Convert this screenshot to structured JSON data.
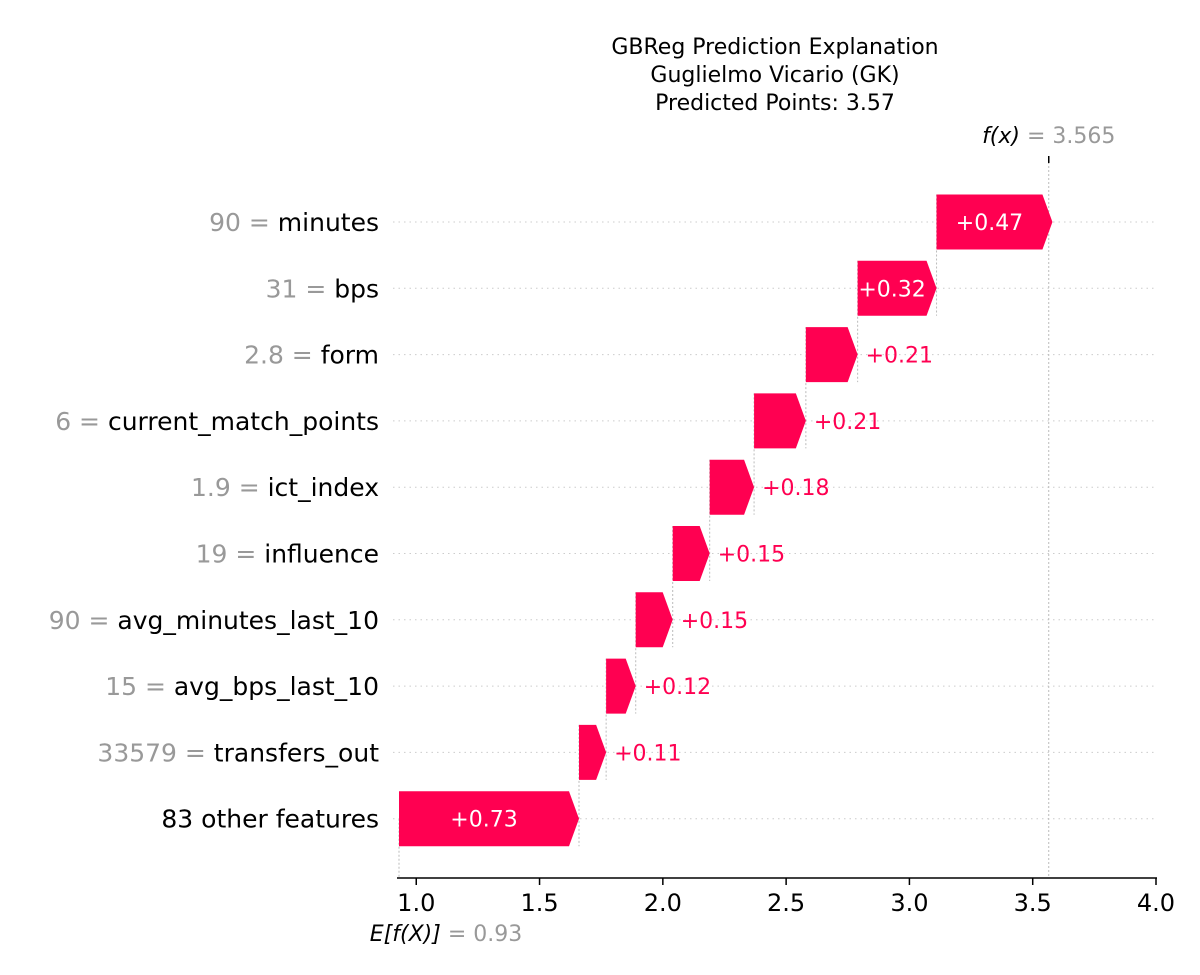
{
  "chart_data": {
    "type": "waterfall",
    "title_lines": [
      "GBReg Prediction Explanation",
      "Guglielmo Vicario (GK)",
      "Predicted Points: 3.57"
    ],
    "fx": {
      "label": "f(x)",
      "value": "3.565"
    },
    "base": {
      "label": "E[f(X)]",
      "value": "0.93"
    },
    "base_value": 0.93,
    "final_value": 3.565,
    "xlim": [
      0.93,
      4.0
    ],
    "xticks": [
      1.0,
      1.5,
      2.0,
      2.5,
      3.0,
      3.5,
      4.0
    ],
    "xtick_labels": [
      "1.0",
      "1.5",
      "2.0",
      "2.5",
      "3.0",
      "3.5",
      "4.0"
    ],
    "features": [
      {
        "value": "90",
        "name": "minutes",
        "contribution": 0.47,
        "label": "+0.47"
      },
      {
        "value": "31",
        "name": "bps",
        "contribution": 0.32,
        "label": "+0.32"
      },
      {
        "value": "2.8",
        "name": "form",
        "contribution": 0.21,
        "label": "+0.21"
      },
      {
        "value": "6",
        "name": "current_match_points",
        "contribution": 0.21,
        "label": "+0.21"
      },
      {
        "value": "1.9",
        "name": "ict_index",
        "contribution": 0.18,
        "label": "+0.18"
      },
      {
        "value": "19",
        "name": "influence",
        "contribution": 0.15,
        "label": "+0.15"
      },
      {
        "value": "90",
        "name": "avg_minutes_last_10",
        "contribution": 0.15,
        "label": "+0.15"
      },
      {
        "value": "15",
        "name": "avg_bps_last_10",
        "contribution": 0.12,
        "label": "+0.12"
      },
      {
        "value": "33579",
        "name": "transfers_out",
        "contribution": 0.11,
        "label": "+0.11"
      },
      {
        "value": "",
        "name": "83 other features",
        "contribution": 0.73,
        "label": "+0.73"
      }
    ],
    "colors": {
      "positive": "#ff0051",
      "value_text": "#999999",
      "label_text": "#000000",
      "gridline": "#cccccc"
    }
  }
}
